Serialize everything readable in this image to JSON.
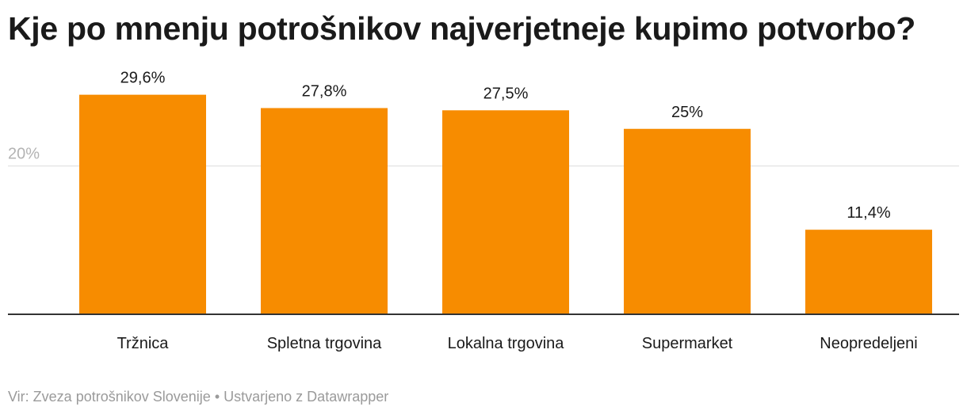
{
  "title": "Kje po mnenju potrošnikov najverjetneje kupimo potvorbo?",
  "footer": {
    "source": "Vir: Zveza potrošnikov Slovenije",
    "separator": "•",
    "credit": "Ustvarjeno z Datawrapper"
  },
  "colors": {
    "bar": "#f78c00",
    "gridline": "#e6e6e6",
    "baseline": "#333333",
    "tick_text": "#b3b3b3"
  },
  "chart_data": {
    "type": "bar",
    "title": "Kje po mnenju potrošnikov najverjetneje kupimo potvorbo?",
    "categories": [
      "Tržnica",
      "Spletna trgovina",
      "Lokalna trgovina",
      "Supermarket",
      "Neopredeljeni"
    ],
    "values": [
      29.6,
      27.8,
      27.5,
      25,
      11.4
    ],
    "value_labels": [
      "29,6%",
      "27,8%",
      "27,5%",
      "25%",
      "11,4%"
    ],
    "yticks": [
      20
    ],
    "ytick_labels": [
      "20%"
    ],
    "ylim": [
      0,
      30
    ],
    "xlabel": "",
    "ylabel": "",
    "grid": true,
    "legend": "none"
  }
}
